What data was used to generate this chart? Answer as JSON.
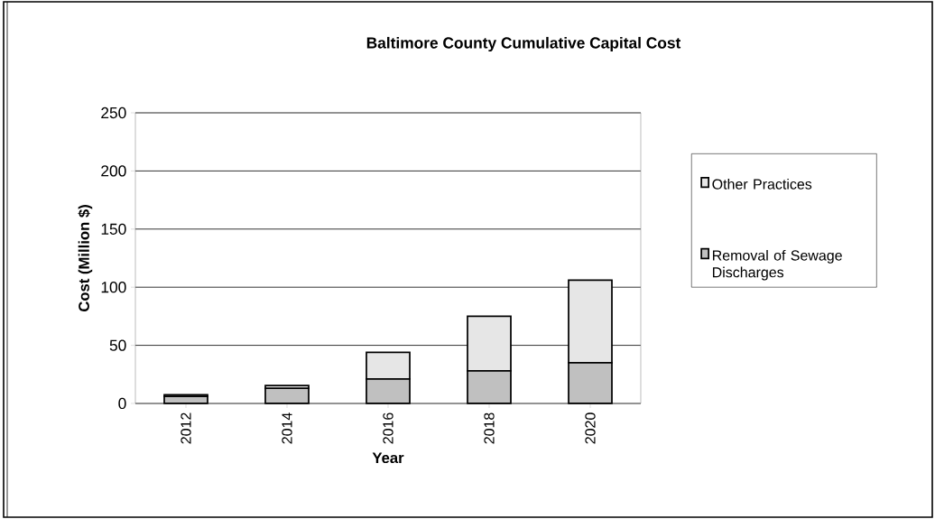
{
  "chart_data": {
    "type": "bar",
    "stacked": true,
    "title": "Baltimore County Cumulative Capital Cost",
    "xlabel": "Year",
    "ylabel": "Cost (Million $)",
    "categories": [
      "2012",
      "2014",
      "2016",
      "2018",
      "2020"
    ],
    "series": [
      {
        "name": "Removal of Sewage Discharges",
        "color": "#c0c0c0",
        "values": [
          6,
          13,
          21,
          28,
          35
        ]
      },
      {
        "name": "Other Practices",
        "color": "#e6e6e6",
        "values": [
          1.5,
          2.5,
          23,
          47,
          71
        ]
      }
    ],
    "ylim": [
      0,
      250
    ],
    "yticks": [
      0,
      50,
      100,
      150,
      200,
      250
    ],
    "grid": "y",
    "legend": "right"
  }
}
